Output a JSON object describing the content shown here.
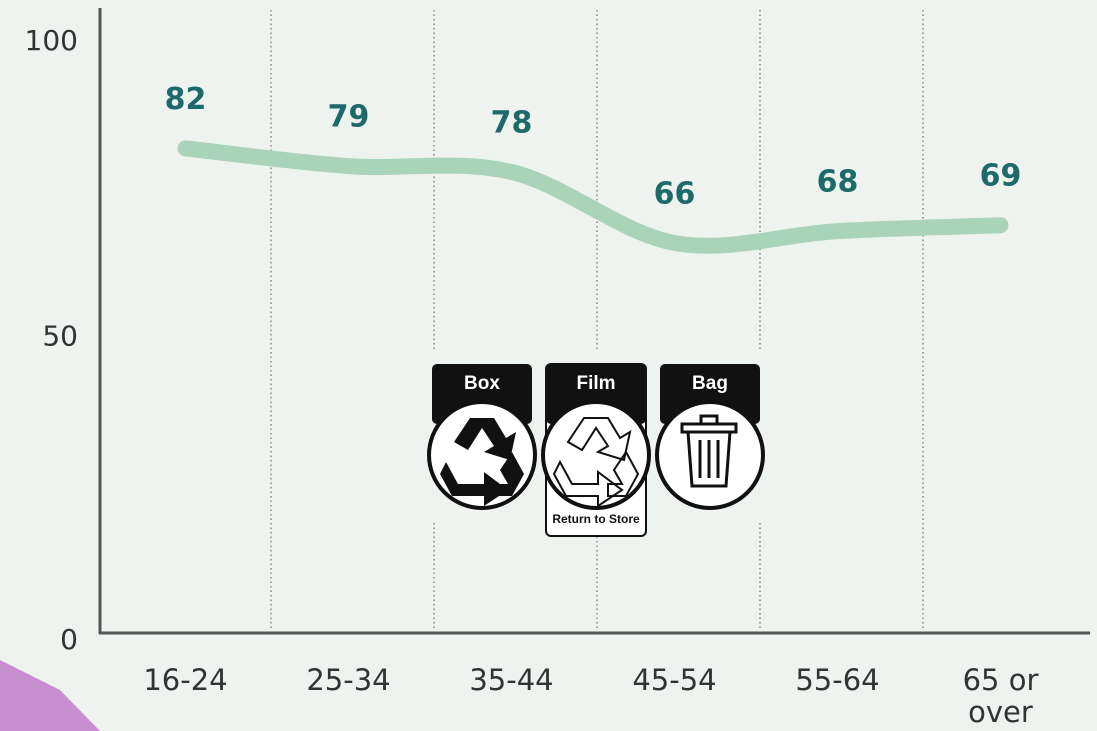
{
  "chart_data": {
    "type": "line",
    "categories": [
      "16-24",
      "25-34",
      "35-44",
      "45-54",
      "55-64",
      "65 or over"
    ],
    "values": [
      82,
      79,
      78,
      66,
      68,
      69
    ],
    "color": "#a9d4b9",
    "label_color": "#1e6a6b",
    "ylim": [
      0,
      100
    ],
    "yticks": [
      0,
      50,
      100
    ],
    "grid": false,
    "icon_labels": [
      "Box",
      "Film",
      "Bag"
    ],
    "icon_note": "Return to Store"
  }
}
